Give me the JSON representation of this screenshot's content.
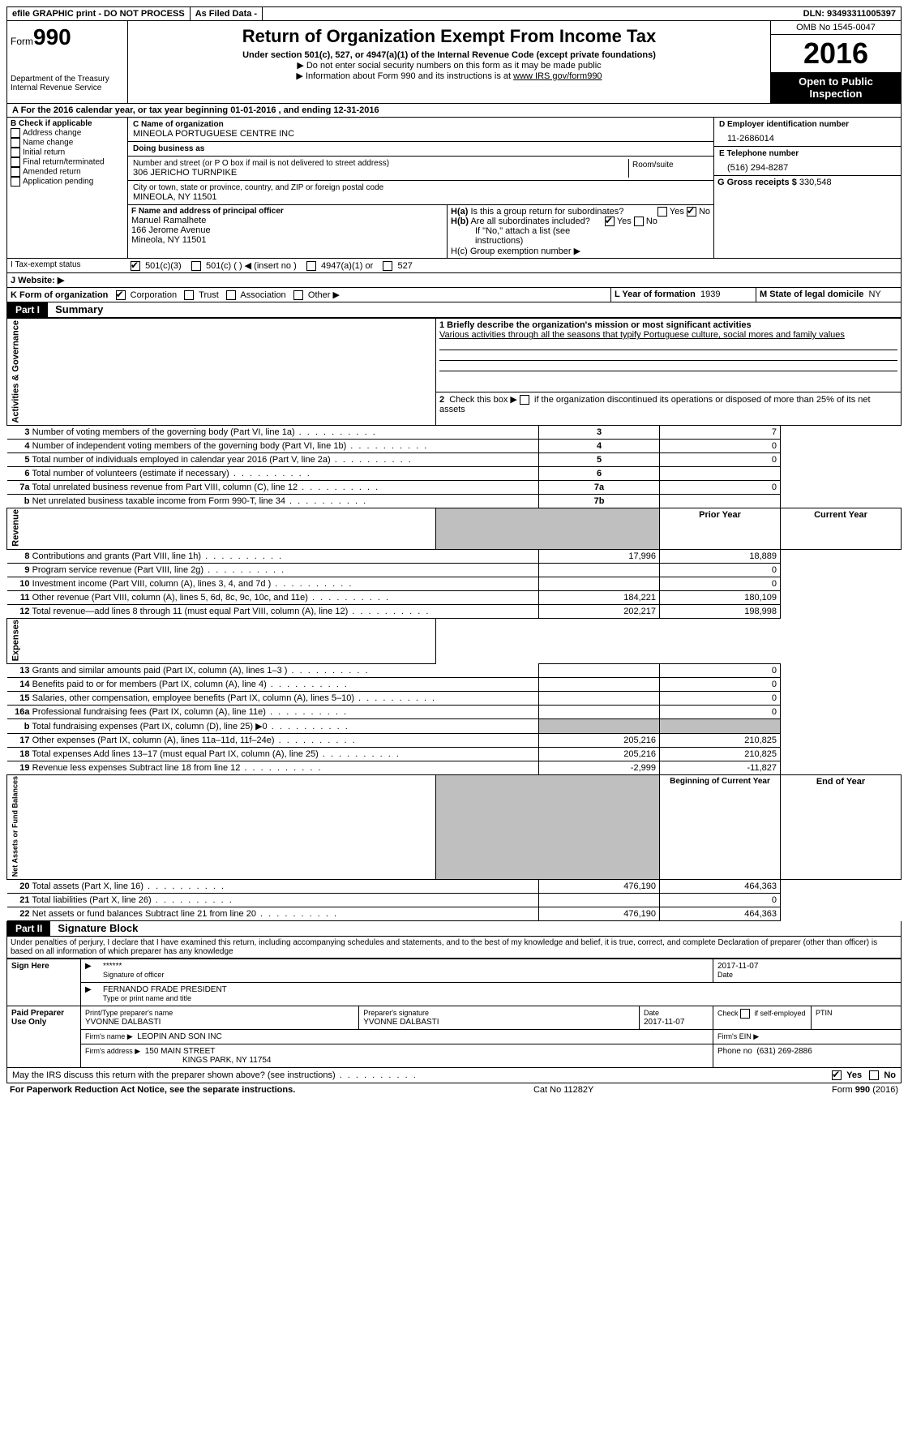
{
  "topbar": {
    "efile": "efile GRAPHIC print - DO NOT PROCESS",
    "asfiled": "As Filed Data -",
    "dln": "DLN: 93493311005397"
  },
  "header": {
    "form_prefix": "Form",
    "form_num": "990",
    "dept1": "Department of the Treasury",
    "dept2": "Internal Revenue Service",
    "title": "Return of Organization Exempt From Income Tax",
    "subtitle": "Under section 501(c), 527, or 4947(a)(1) of the Internal Revenue Code (except private foundations)",
    "note1": "▶ Do not enter social security numbers on this form as it may be made public",
    "note2_pre": "▶ Information about Form 990 and its instructions is at ",
    "note2_link": "www IRS gov/form990",
    "omb": "OMB No  1545-0047",
    "year": "2016",
    "open1": "Open to Public",
    "open2": "Inspection"
  },
  "rowA": "A   For the 2016 calendar year, or tax year beginning 01-01-2016    , and ending 12-31-2016",
  "b": {
    "hdr": "B  Check if applicable",
    "items": [
      "Address change",
      "Name change",
      "Initial return",
      "Final return/terminated",
      "Amended return",
      "Application pending"
    ]
  },
  "c": {
    "name_lbl": "C Name of organization",
    "name": "MINEOLA PORTUGUESE CENTRE INC",
    "dba_lbl": "Doing business as",
    "dba": "",
    "street_lbl": "Number and street (or P O  box if mail is not delivered to street address)",
    "room_lbl": "Room/suite",
    "street": "306 JERICHO TURNPIKE",
    "city_lbl": "City or town, state or province, country, and ZIP or foreign postal code",
    "city": "MINEOLA, NY  11501"
  },
  "d": {
    "lbl": "D Employer identification number",
    "val": "11-2686014"
  },
  "e": {
    "lbl": "E Telephone number",
    "val": "(516) 294-8287"
  },
  "g": {
    "lbl": "G Gross receipts $",
    "val": "330,548"
  },
  "f": {
    "lbl": "F   Name and address of principal officer",
    "l1": "Manuel Ramalhete",
    "l2": "166 Jerome Avenue",
    "l3": "Mineola, NY  11501"
  },
  "h": {
    "a": "H(a)  Is this a group return for subordinates?",
    "b": "H(b)  Are all subordinates included?",
    "b_note": "If \"No,\" attach a list  (see instructions)",
    "c": "H(c)  Group exemption number ▶"
  },
  "i": {
    "lbl": "I    Tax-exempt status",
    "o1": "501(c)(3)",
    "o2": "501(c) (   ) ◀ (insert no )",
    "o3": "4947(a)(1) or",
    "o4": "527"
  },
  "j": "J   Website: ▶",
  "k": {
    "lbl": "K Form of organization",
    "o1": "Corporation",
    "o2": "Trust",
    "o3": "Association",
    "o4": "Other ▶"
  },
  "l": {
    "lbl": "L Year of formation",
    "val": "1939"
  },
  "m": {
    "lbl": "M State of legal domicile",
    "val": "NY"
  },
  "part1": {
    "hdr": "Part I",
    "title": "Summary",
    "q1_lbl": "1  Briefly describe the organization's mission or most significant activities",
    "q1_val": "Various activities through all the seasons that typify Portuguese culture, social mores and family values",
    "q2": "2    Check this box ▶        if the organization discontinued its operations or disposed of more than 25% of its net assets",
    "gov_label": "Activities & Governance",
    "rev_label": "Revenue",
    "exp_label": "Expenses",
    "net_label": "Net Assets or Fund Balances",
    "lines_gov": [
      {
        "n": "3",
        "t": "Number of voting members of the governing body (Part VI, line 1a)",
        "box": "3",
        "v": "7"
      },
      {
        "n": "4",
        "t": "Number of independent voting members of the governing body (Part VI, line 1b)",
        "box": "4",
        "v": "0"
      },
      {
        "n": "5",
        "t": "Total number of individuals employed in calendar year 2016 (Part V, line 2a)",
        "box": "5",
        "v": "0"
      },
      {
        "n": "6",
        "t": "Total number of volunteers (estimate if necessary)",
        "box": "6",
        "v": ""
      },
      {
        "n": "7a",
        "t": "Total unrelated business revenue from Part VIII, column (C), line 12",
        "box": "7a",
        "v": "0"
      },
      {
        "n": "b",
        "t": "Net unrelated business taxable income from Form 990-T, line 34",
        "box": "7b",
        "v": ""
      }
    ],
    "col_prior": "Prior Year",
    "col_curr": "Current Year",
    "lines_rev": [
      {
        "n": "8",
        "t": "Contributions and grants (Part VIII, line 1h)",
        "p": "17,996",
        "c": "18,889"
      },
      {
        "n": "9",
        "t": "Program service revenue (Part VIII, line 2g)",
        "p": "",
        "c": "0"
      },
      {
        "n": "10",
        "t": "Investment income (Part VIII, column (A), lines 3, 4, and 7d )",
        "p": "",
        "c": "0"
      },
      {
        "n": "11",
        "t": "Other revenue (Part VIII, column (A), lines 5, 6d, 8c, 9c, 10c, and 11e)",
        "p": "184,221",
        "c": "180,109"
      },
      {
        "n": "12",
        "t": "Total revenue—add lines 8 through 11 (must equal Part VIII, column (A), line 12)",
        "p": "202,217",
        "c": "198,998"
      }
    ],
    "lines_exp": [
      {
        "n": "13",
        "t": "Grants and similar amounts paid (Part IX, column (A), lines 1–3 )",
        "p": "",
        "c": "0"
      },
      {
        "n": "14",
        "t": "Benefits paid to or for members (Part IX, column (A), line 4)",
        "p": "",
        "c": "0"
      },
      {
        "n": "15",
        "t": "Salaries, other compensation, employee benefits (Part IX, column (A), lines 5–10)",
        "p": "",
        "c": "0"
      },
      {
        "n": "16a",
        "t": "Professional fundraising fees (Part IX, column (A), line 11e)",
        "p": "",
        "c": "0"
      },
      {
        "n": "b",
        "t": "Total fundraising expenses (Part IX, column (D), line 25) ▶0",
        "p": "GREY",
        "c": "GREY"
      },
      {
        "n": "17",
        "t": "Other expenses (Part IX, column (A), lines 11a–11d, 11f–24e)",
        "p": "205,216",
        "c": "210,825"
      },
      {
        "n": "18",
        "t": "Total expenses  Add lines 13–17 (must equal Part IX, column (A), line 25)",
        "p": "205,216",
        "c": "210,825"
      },
      {
        "n": "19",
        "t": "Revenue less expenses  Subtract line 18 from line 12",
        "p": "-2,999",
        "c": "-11,827"
      }
    ],
    "col_bcy": "Beginning of Current Year",
    "col_eoy": "End of Year",
    "lines_net": [
      {
        "n": "20",
        "t": "Total assets (Part X, line 16)",
        "p": "476,190",
        "c": "464,363"
      },
      {
        "n": "21",
        "t": "Total liabilities (Part X, line 26)",
        "p": "",
        "c": "0"
      },
      {
        "n": "22",
        "t": "Net assets or fund balances  Subtract line 21 from line 20",
        "p": "476,190",
        "c": "464,363"
      }
    ]
  },
  "part2": {
    "hdr": "Part II",
    "title": "Signature Block",
    "decl": "Under penalties of perjury, I declare that I have examined this return, including accompanying schedules and statements, and to the best of my knowledge and belief, it is true, correct, and complete  Declaration of preparer (other than officer) is based on all information of which preparer has any knowledge",
    "sign_here": "Sign Here",
    "stars": "******",
    "sig_off": "Signature of officer",
    "date_lbl": "Date",
    "sig_date": "2017-11-07",
    "name_title": "FERNANDO FRADE  PRESIDENT",
    "type_name": "Type or print name and title",
    "paid": "Paid Preparer Use Only",
    "prep_name_lbl": "Print/Type preparer's name",
    "prep_name": "YVONNE DALBASTI",
    "prep_sig_lbl": "Preparer's signature",
    "prep_sig": "YVONNE DALBASTI",
    "prep_date": "2017-11-07",
    "check_self": "Check        if self-employed",
    "ptin": "PTIN",
    "firm_name_lbl": "Firm's name      ▶",
    "firm_name": "LEOPIN AND SON INC",
    "firm_ein": "Firm's EIN ▶",
    "firm_addr_lbl": "Firm's address ▶",
    "firm_addr1": "150 MAIN STREET",
    "firm_addr2": "KINGS PARK, NY  11754",
    "phone_lbl": "Phone no",
    "phone": "(631) 269-2886",
    "irs_q": "May the IRS discuss this return with the preparer shown above? (see instructions)",
    "yes": "Yes",
    "no": "No"
  },
  "footer": {
    "left": "For Paperwork Reduction Act Notice, see the separate instructions.",
    "mid": "Cat  No  11282Y",
    "right": "Form 990 (2016)"
  }
}
